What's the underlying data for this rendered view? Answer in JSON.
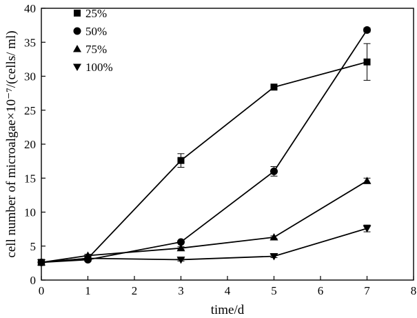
{
  "chart_data": {
    "type": "line",
    "title": "",
    "xlabel": "time/d",
    "ylabel": "cell number of microalgae×10⁻⁷/(cells/ ml)",
    "xlim": [
      0,
      8
    ],
    "ylim": [
      0,
      40
    ],
    "x_ticks": [
      0,
      1,
      2,
      3,
      4,
      5,
      6,
      7,
      8
    ],
    "y_ticks": [
      0,
      5,
      10,
      15,
      20,
      25,
      30,
      35,
      40
    ],
    "grid": false,
    "legend_position": "top-left",
    "series": [
      {
        "name": "25%",
        "marker": "square",
        "x": [
          0,
          1,
          3,
          5,
          7
        ],
        "values": [
          2.6,
          3.2,
          17.6,
          28.4,
          32.1
        ],
        "errors": [
          0.2,
          0.2,
          1.0,
          0.2,
          2.7
        ]
      },
      {
        "name": "50%",
        "marker": "circle",
        "x": [
          0,
          1,
          3,
          5,
          7
        ],
        "values": [
          2.6,
          3.0,
          5.6,
          16.0,
          36.8
        ],
        "errors": [
          0.2,
          0.2,
          0.2,
          0.7,
          0.3
        ]
      },
      {
        "name": "75%",
        "marker": "triangle-up",
        "x": [
          0,
          1,
          3,
          5,
          7
        ],
        "values": [
          2.6,
          3.6,
          4.7,
          6.3,
          14.6
        ],
        "errors": [
          0.2,
          0.2,
          0.2,
          0.2,
          0.4
        ]
      },
      {
        "name": "100%",
        "marker": "triangle-down",
        "x": [
          0,
          1,
          3,
          5,
          7
        ],
        "values": [
          2.6,
          3.2,
          3.0,
          3.5,
          7.6
        ],
        "errors": [
          0.2,
          0.2,
          0.2,
          0.2,
          0.5
        ]
      }
    ]
  }
}
